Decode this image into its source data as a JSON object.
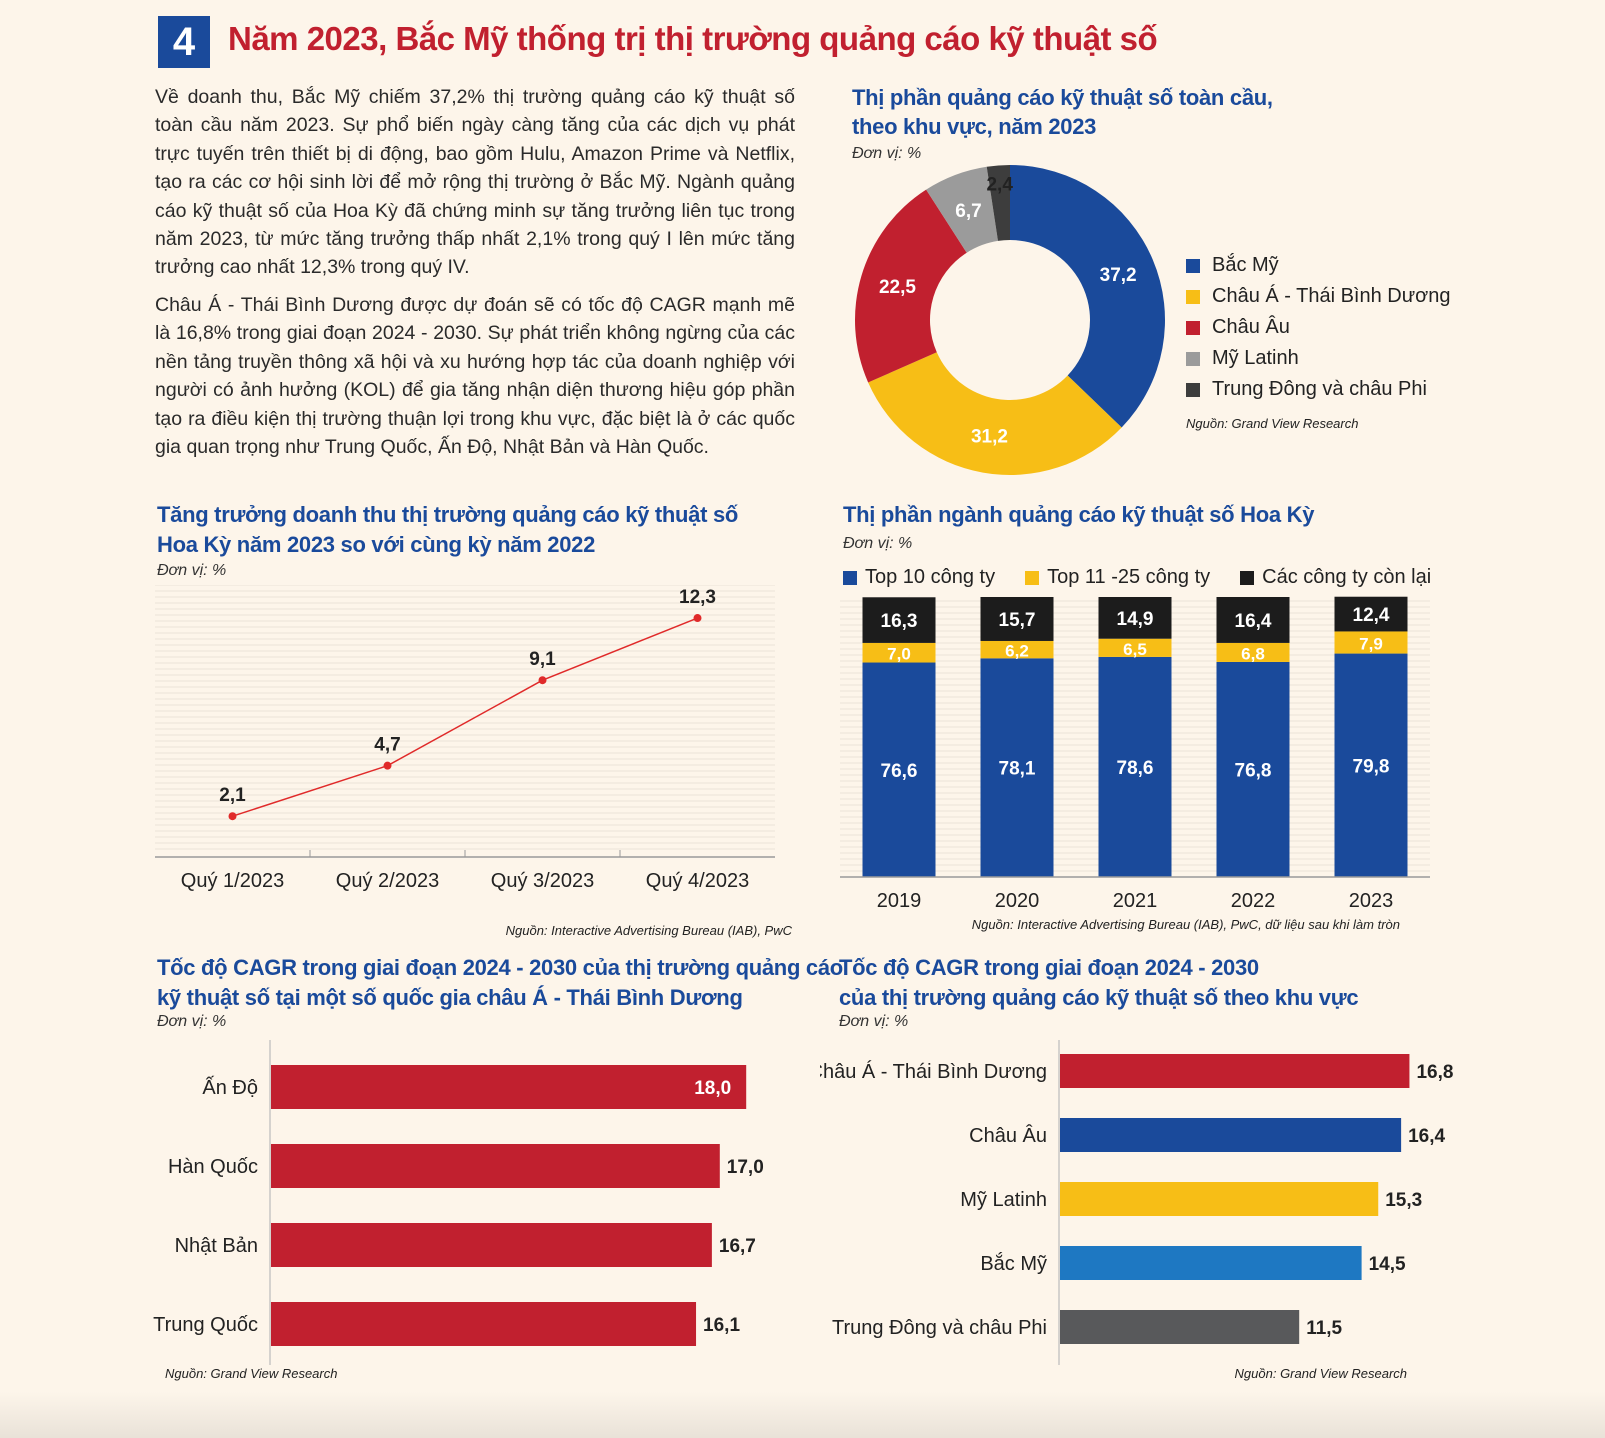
{
  "header": {
    "number": "4",
    "title": "Năm 2023, Bắc Mỹ thống trị thị trường quảng cáo kỹ thuật số"
  },
  "body": {
    "paragraph1": "Về doanh thu, Bắc Mỹ chiếm 37,2% thị trường quảng cáo kỹ thuật số toàn cầu năm 2023. Sự phổ biến ngày càng tăng của các dịch vụ phát trực tuyến trên thiết bị di động, bao gồm Hulu, Amazon Prime và Netflix, tạo ra các cơ hội sinh lời để mở rộng thị trường ở Bắc Mỹ. Ngành quảng cáo kỹ thuật số của Hoa Kỳ đã chứng minh sự tăng trưởng liên tục trong năm 2023, từ mức tăng trưởng thấp nhất 2,1% trong quý I lên mức tăng trưởng cao nhất 12,3% trong quý IV.",
    "paragraph2": "Châu Á - Thái Bình Dương được dự đoán sẽ có tốc độ CAGR mạnh mẽ là 16,8% trong giai đoạn 2024 - 2030. Sự phát triển không ngừng của các nền tảng truyền thông xã hội và xu hướng hợp tác của doanh nghiệp với người có ảnh hưởng (KOL) để gia tăng nhận diện thương hiệu góp phần tạo ra điều kiện thị trường thuận lợi trong khu vực, đặc biệt là ở các quốc gia quan trọng như Trung Quốc, Ấn Độ, Nhật Bản và Hàn Quốc."
  },
  "chart_data": [
    {
      "id": "donut",
      "type": "pie",
      "title_line1": "Thị phần quảng cáo kỹ thuật số toàn cầu,",
      "title_line2": "theo khu vực, năm 2023",
      "unit": "Đơn vị: %",
      "source": "Nguồn: Grand View Research",
      "legend_position": "right",
      "slices": [
        {
          "label": "Bắc Mỹ",
          "value": 37.2,
          "text": "37,2",
          "color": "#1a4a9b"
        },
        {
          "label": "Châu Á - Thái Bình Dương",
          "value": 31.2,
          "text": "31,2",
          "color": "#f7be16"
        },
        {
          "label": "Châu Âu",
          "value": 22.5,
          "text": "22,5",
          "color": "#c1202f"
        },
        {
          "label": "Mỹ Latinh",
          "value": 6.7,
          "text": "6,7",
          "color": "#9b9b9b"
        },
        {
          "label": "Trung Đông và châu Phi",
          "value": 2.4,
          "text": "2,4",
          "color": "#3d3d3d"
        }
      ]
    },
    {
      "id": "line",
      "type": "line",
      "title_line1": "Tăng trưởng doanh thu thị trường quảng cáo kỹ thuật số",
      "title_line2": "Hoa Kỳ năm 2023 so với cùng kỳ năm 2022",
      "unit": "Đơn vị: %",
      "source": "Nguồn: Interactive Advertising Bureau (IAB), PwC",
      "categories": [
        "Quý 1/2023",
        "Quý 2/2023",
        "Quý 3/2023",
        "Quý 4/2023"
      ],
      "values": [
        2.1,
        4.7,
        9.1,
        12.3
      ],
      "labels": [
        "2,1",
        "4,7",
        "9,1",
        "12,3"
      ],
      "ylim": [
        0,
        14
      ],
      "color": "#e02a2a",
      "grid": true
    },
    {
      "id": "stacked",
      "type": "bar",
      "stacked": true,
      "title": "Thị phần ngành quảng cáo kỹ thuật số Hoa Kỳ",
      "unit": "Đơn vị: %",
      "source": "Nguồn: Interactive Advertising Bureau (IAB), PwC, dữ liệu sau khi làm tròn",
      "legend_position": "top",
      "categories": [
        "2019",
        "2020",
        "2021",
        "2022",
        "2023"
      ],
      "series": [
        {
          "name": "Top 10 công ty",
          "color": "#1a4a9b",
          "values": [
            76.6,
            78.1,
            78.6,
            76.8,
            79.8
          ],
          "labels": [
            "76,6",
            "78,1",
            "78,6",
            "76,8",
            "79,8"
          ]
        },
        {
          "name": "Top 11 -25 công ty",
          "color": "#f7be16",
          "values": [
            7.0,
            6.2,
            6.5,
            6.8,
            7.9
          ],
          "labels": [
            "7,0",
            "6,2",
            "6,5",
            "6,8",
            "7,9"
          ]
        },
        {
          "name": "Các công ty còn lại",
          "color": "#1c1c1c",
          "values": [
            16.3,
            15.7,
            14.9,
            16.4,
            12.4
          ],
          "labels": [
            "16,3",
            "15,7",
            "14,9",
            "16,4",
            "12,4"
          ]
        }
      ]
    },
    {
      "id": "hbar_asia",
      "type": "bar",
      "orientation": "horizontal",
      "title_line1": "Tốc độ CAGR trong giai đoạn 2024 - 2030 của thị trường quảng cáo",
      "title_line2": "kỹ thuật số tại một số quốc gia châu Á - Thái Bình Dương",
      "unit": "Đơn vị: %",
      "source": "Nguồn: Grand View Research",
      "categories": [
        "Ấn Độ",
        "Hàn Quốc",
        "Nhật Bản",
        "Trung Quốc"
      ],
      "values": [
        18.0,
        17.0,
        16.7,
        16.1
      ],
      "labels": [
        "18,0",
        "17,0",
        "16,7",
        "16,1"
      ],
      "colors": [
        "#c1202f",
        "#c1202f",
        "#c1202f",
        "#c1202f"
      ]
    },
    {
      "id": "hbar_region",
      "type": "bar",
      "orientation": "horizontal",
      "title_line1": "Tốc độ CAGR trong giai đoạn 2024 - 2030",
      "title_line2": "của thị trường quảng cáo kỹ thuật số theo khu vực",
      "unit": "Đơn vị: %",
      "source": "Nguồn: Grand View Research",
      "categories": [
        "Châu Á - Thái Bình Dương",
        "Châu Âu",
        "Mỹ Latinh",
        "Bắc Mỹ",
        "Trung Đông và châu Phi"
      ],
      "values": [
        16.8,
        16.4,
        15.3,
        14.5,
        11.5
      ],
      "labels": [
        "16,8",
        "16,4",
        "15,3",
        "14,5",
        "11,5"
      ],
      "colors": [
        "#c1202f",
        "#1a4a9b",
        "#f7be16",
        "#1e78c2",
        "#58595b"
      ]
    }
  ]
}
